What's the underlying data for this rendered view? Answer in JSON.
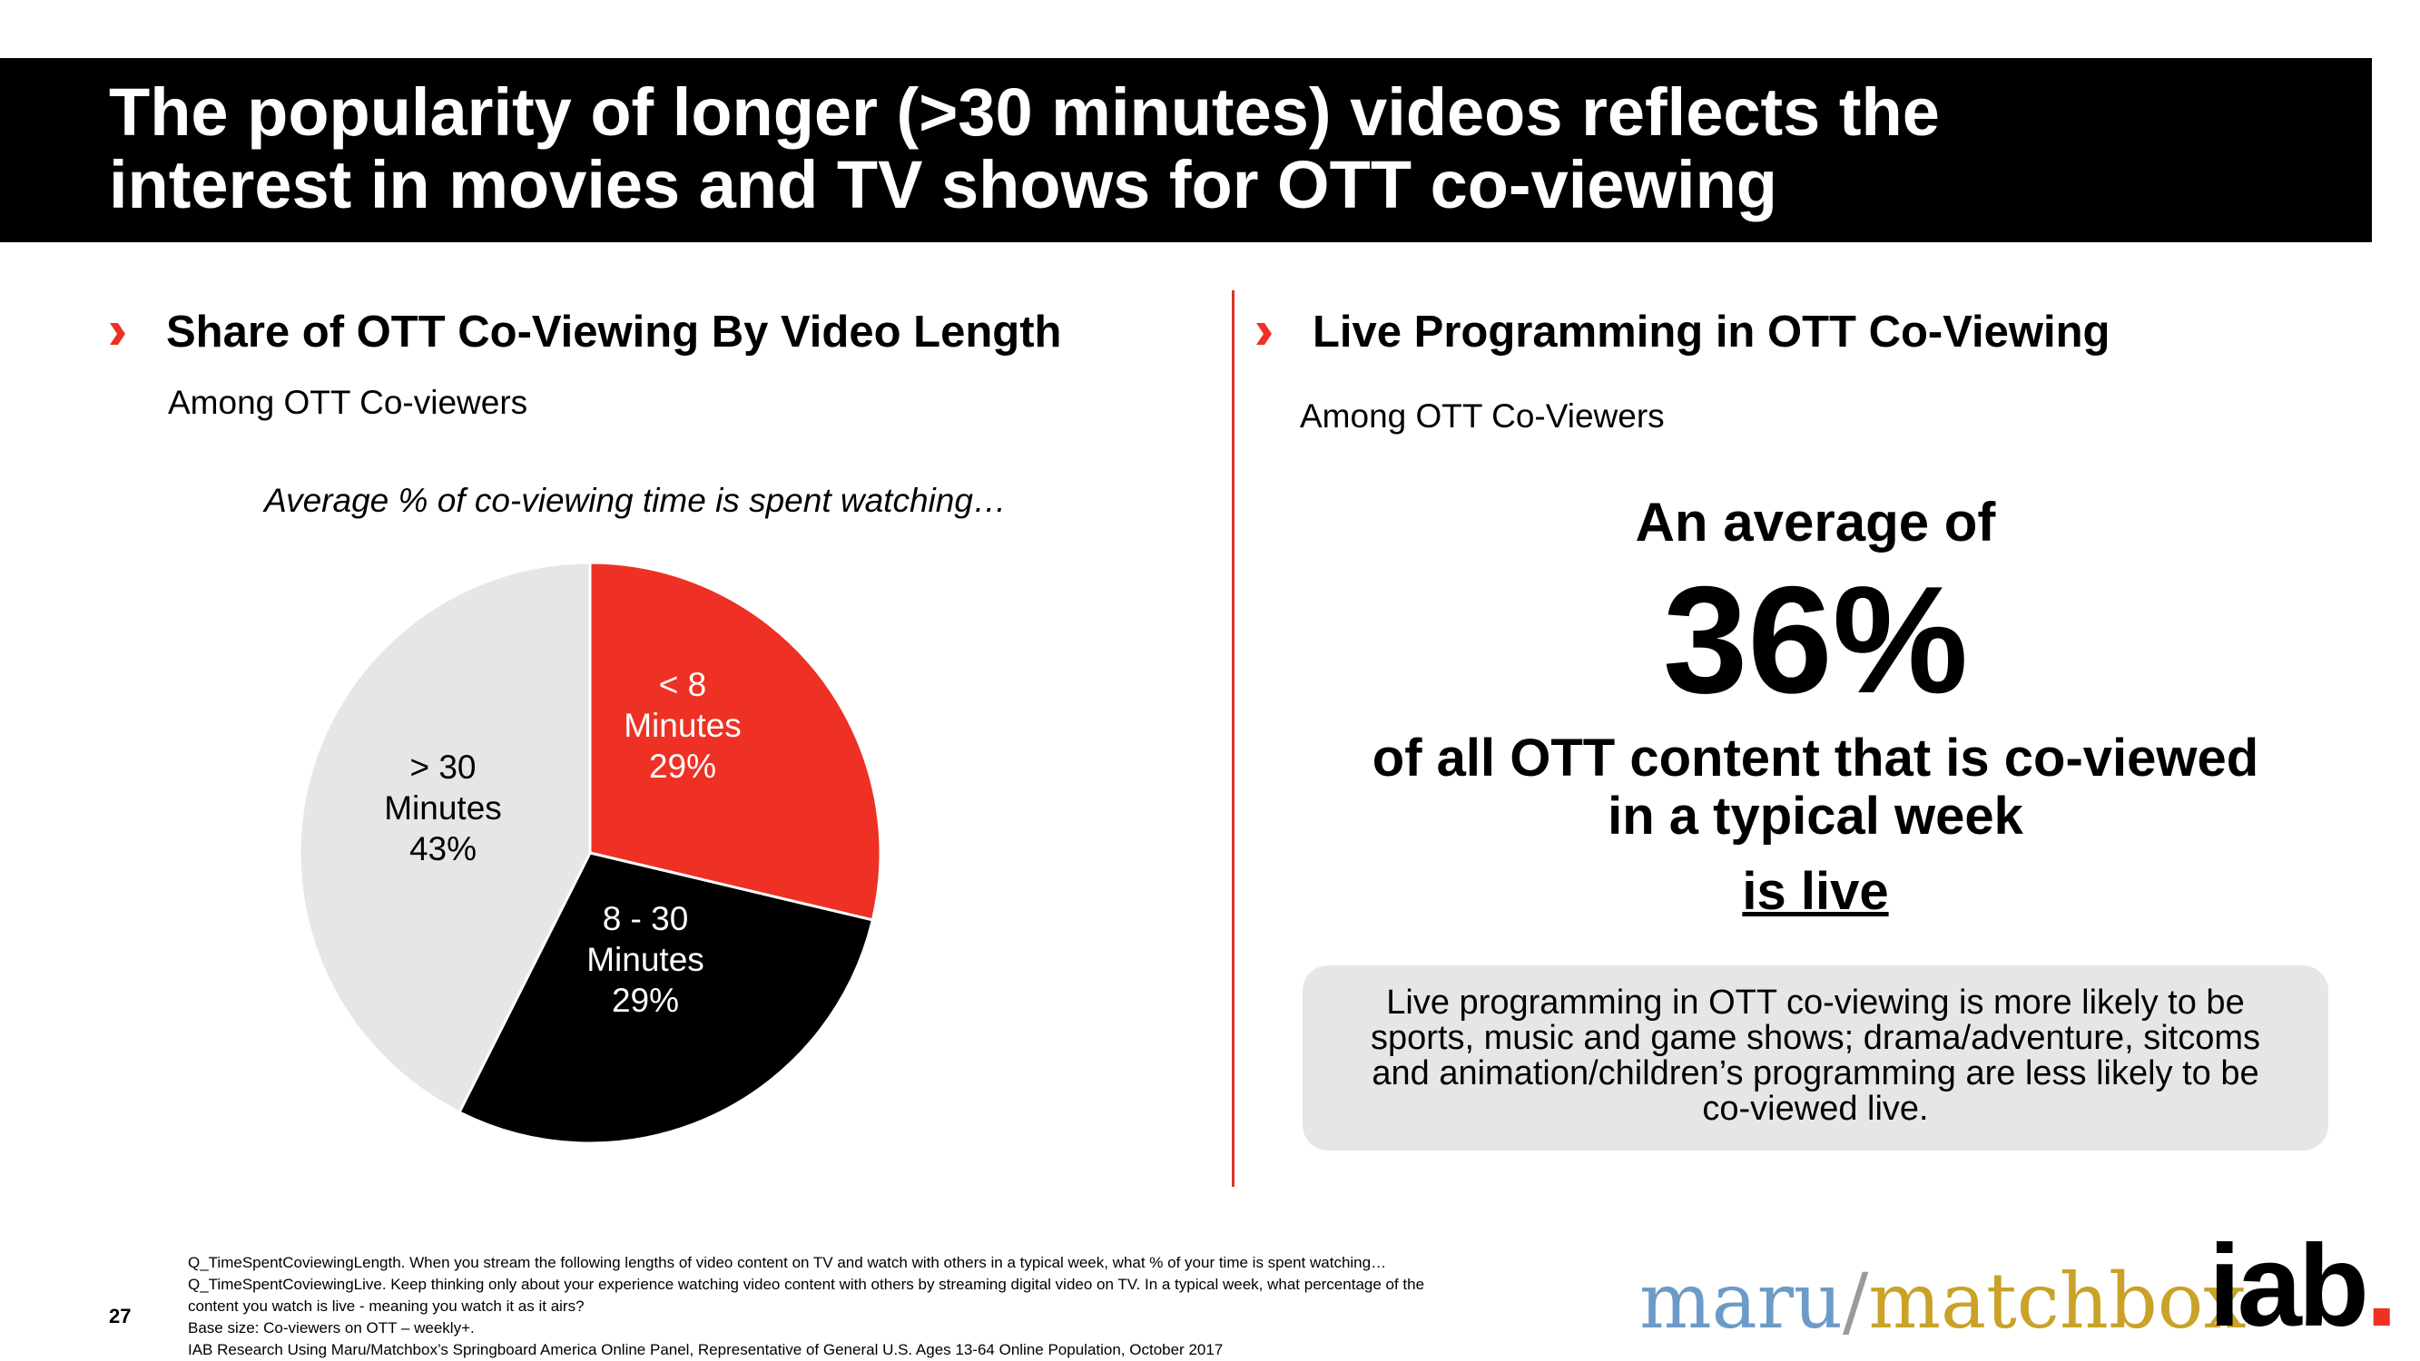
{
  "header": {
    "title_line1": "The popularity of longer (>30 minutes) videos reflects the",
    "title_line2": "interest in movies and TV shows for OTT co-viewing"
  },
  "left": {
    "section_title": "Share of OTT Co-Viewing By Video Length",
    "subtitle": "Among OTT Co-viewers",
    "caption": "Average % of co-viewing time is spent watching…"
  },
  "chart_data": {
    "type": "pie",
    "title": "Share of OTT Co-Viewing By Video Length",
    "slices": [
      {
        "label": "< 8 Minutes",
        "label_lines": [
          "< 8",
          "Minutes",
          "29%"
        ],
        "value": 29,
        "color": "#ee3124"
      },
      {
        "label": "8 - 30 Minutes",
        "label_lines": [
          "8 - 30",
          "Minutes",
          "29%"
        ],
        "value": 29,
        "color": "#000000"
      },
      {
        "label": "> 30 Minutes",
        "label_lines": [
          "> 30",
          "Minutes",
          "43%"
        ],
        "value": 43,
        "color": "#e6e6e6"
      }
    ]
  },
  "right": {
    "section_title": "Live Programming in OTT Co-Viewing",
    "subtitle": "Among OTT Co-Viewers",
    "stat_intro": "An average of",
    "stat_value": "36%",
    "stat_desc_line1": "of all OTT content that is co-viewed",
    "stat_desc_line2": "in a typical week",
    "stat_emphasis": "is live",
    "callout_line1": "Live programming in OTT co-viewing is more likely to be",
    "callout_line2": "sports, music and game shows; drama/adventure, sitcoms",
    "callout_line3": "and animation/children’s programming are less likely to be",
    "callout_line4": "co-viewed live."
  },
  "footer": {
    "page_number": "27",
    "footnotes": [
      "Q_TimeSpentCoviewingLength. When you stream the following lengths of video content on TV and watch with others in a typical week, what % of your time is spent watching…",
      "Q_TimeSpentCoviewingLive. Keep thinking only about your experience watching video content with others by streaming digital video on TV. In a typical week, what percentage of the",
      "content you watch is live - meaning you watch it as it airs?",
      "Base size: Co-viewers on OTT – weekly+.",
      "IAB Research Using Maru/Matchbox’s Springboard America Online Panel, Representative of General U.S. Ages 13-64 Online Population, October 2017"
    ],
    "logo_maru": "maru",
    "logo_slash": "/",
    "logo_matchbox": "matchbox",
    "logo_iab": "iab",
    "logo_iab_dot": "."
  },
  "colors": {
    "accent_red": "#ee3124",
    "divider_red": "#d9342b",
    "maru_blue": "#6c9bc7",
    "matchbox_gold": "#c9a227",
    "callout_gray": "#e6e6e6"
  }
}
